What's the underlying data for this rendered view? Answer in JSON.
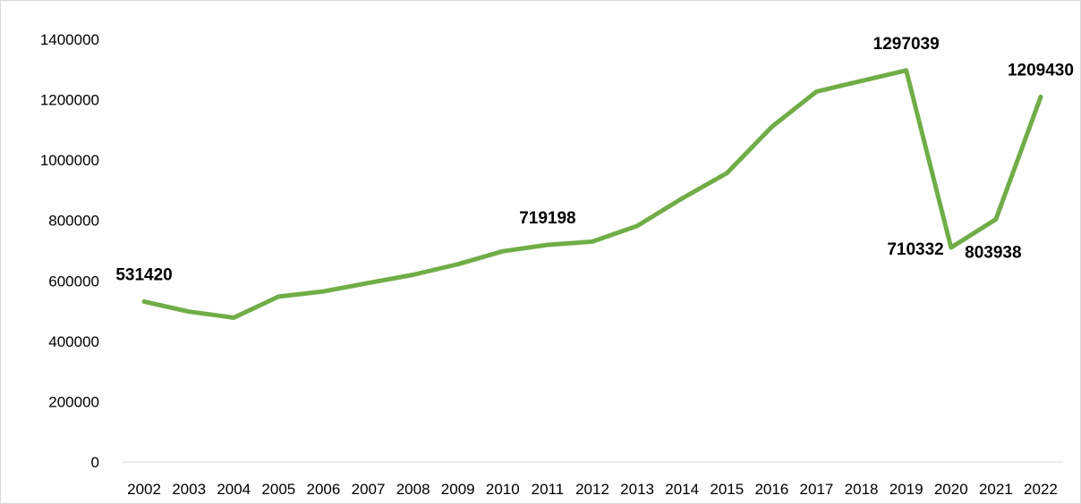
{
  "chart_data": {
    "type": "line",
    "title": "",
    "xlabel": "",
    "ylabel": "",
    "x": [
      "2002",
      "2003",
      "2004",
      "2005",
      "2006",
      "2007",
      "2008",
      "2009",
      "2010",
      "2011",
      "2012",
      "2013",
      "2014",
      "2015",
      "2016",
      "2017",
      "2018",
      "2019",
      "2020",
      "2021",
      "2022"
    ],
    "series": [
      {
        "values": [
          531420,
          498000,
          478000,
          548000,
          565000,
          593000,
          620000,
          655000,
          698000,
          719198,
          730000,
          782000,
          873000,
          957000,
          1110000,
          1227000,
          1262000,
          1297039,
          710332,
          803938,
          1209430
        ]
      }
    ],
    "yticks": [
      "0",
      "200000",
      "400000",
      "600000",
      "800000",
      "1000000",
      "1200000",
      "1400000"
    ],
    "ylim": [
      0,
      1400000
    ],
    "grid": false,
    "legend": "none",
    "data_labels": [
      {
        "x": "2002",
        "text": "531420"
      },
      {
        "x": "2011",
        "text": "719198"
      },
      {
        "x": "2019",
        "text": "1297039"
      },
      {
        "x": "2020",
        "text": "710332"
      },
      {
        "x": "2021",
        "text": "803938"
      },
      {
        "x": "2022",
        "text": "1209430"
      }
    ],
    "colors": {
      "line": "#70ad47",
      "axis": "#d9d9d9",
      "text": "#000000"
    }
  }
}
